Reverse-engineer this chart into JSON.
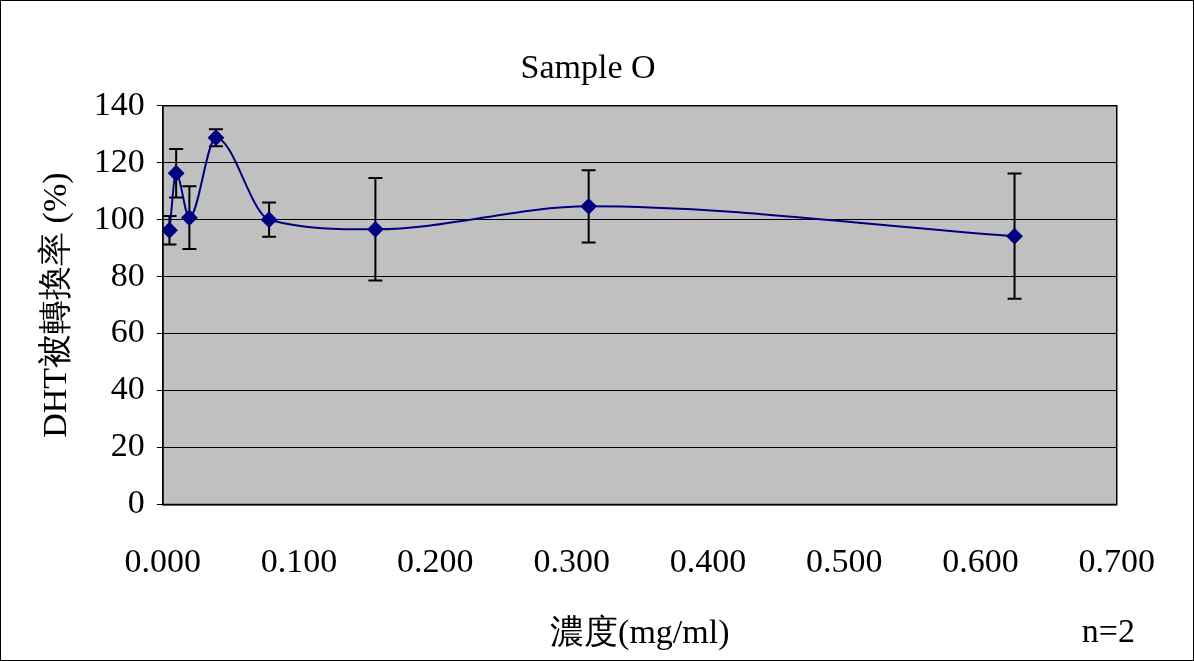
{
  "chart_data": {
    "type": "line",
    "title": "Sample O",
    "xlabel": "濃度(mg/ml)",
    "ylabel": "DHT被轉換率 (%)",
    "annotations": [
      "n=2"
    ],
    "x": [
      0.0049,
      0.0098,
      0.0195,
      0.039,
      0.078,
      0.156,
      0.3125,
      0.625
    ],
    "series": [
      {
        "color": "#000080",
        "values": [
          96.3,
          116.3,
          100.7,
          128.8,
          100,
          96.6,
          104.7,
          94.2
        ],
        "errors": [
          5,
          8.5,
          11,
          3,
          6,
          18,
          12.7,
          22
        ]
      }
    ],
    "xlim": [
      0,
      0.7
    ],
    "xticks": [
      {
        "value": 0,
        "label": "0.000"
      },
      {
        "value": 0.1,
        "label": "0.100"
      },
      {
        "value": 0.2,
        "label": "0.200"
      },
      {
        "value": 0.3,
        "label": "0.300"
      },
      {
        "value": 0.4,
        "label": "0.400"
      },
      {
        "value": 0.5,
        "label": "0.500"
      },
      {
        "value": 0.6,
        "label": "0.600"
      },
      {
        "value": 0.7,
        "label": "0.700"
      }
    ],
    "ylim": [
      0,
      140
    ],
    "yticks": [
      0,
      20,
      40,
      60,
      80,
      100,
      120,
      140
    ],
    "grid": "y",
    "marker": "diamond",
    "line_style": "solid",
    "legend": false
  }
}
